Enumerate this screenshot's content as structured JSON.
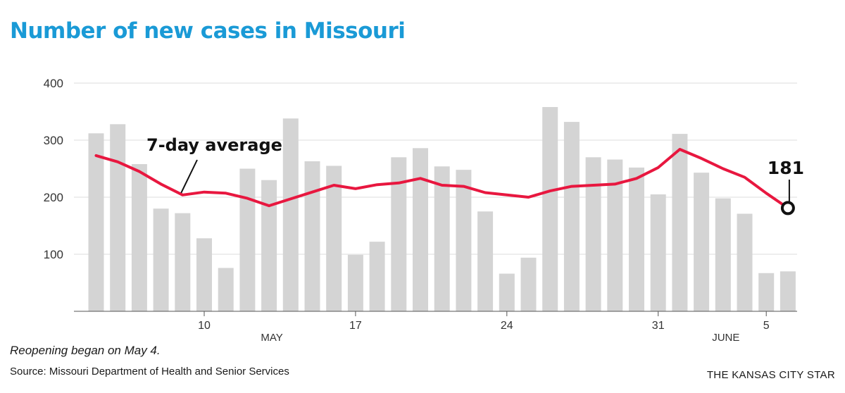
{
  "header": {
    "title": "Number of new cases in Missouri"
  },
  "footer": {
    "note": "Reopening began on May 4.",
    "source": "Source: Missouri Department of Health and Senior Services",
    "credit": "THE KANSAS CITY STAR"
  },
  "colors": {
    "title": "#1a9ad6",
    "bars": "#d4d4d4",
    "line": "#e8173f",
    "grid": "#dddddd"
  },
  "chart_data": {
    "type": "bar",
    "ylim": [
      0,
      400
    ],
    "yticks": [
      100,
      200,
      300,
      400
    ],
    "grid": true,
    "categories": [
      "May 5",
      "May 6",
      "May 7",
      "May 8",
      "May 9",
      "May 10",
      "May 11",
      "May 12",
      "May 13",
      "May 14",
      "May 15",
      "May 16",
      "May 17",
      "May 18",
      "May 19",
      "May 20",
      "May 21",
      "May 22",
      "May 23",
      "May 24",
      "May 25",
      "May 26",
      "May 27",
      "May 28",
      "May 29",
      "May 30",
      "May 31",
      "Jun 1",
      "Jun 2",
      "Jun 3",
      "Jun 4",
      "Jun 5",
      "Jun 6"
    ],
    "x_tick_labels": [
      {
        "category": "May 10",
        "label": "10"
      },
      {
        "category": "May 17",
        "label": "17"
      },
      {
        "category": "May 24",
        "label": "24"
      },
      {
        "category": "May 31",
        "label": "31"
      },
      {
        "category": "Jun 5",
        "label": "5"
      }
    ],
    "month_labels": [
      {
        "category": "May 13",
        "label": "MAY"
      },
      {
        "category": "Jun 3",
        "label": "JUNE"
      }
    ],
    "series": [
      {
        "type": "bar",
        "values": [
          312,
          328,
          258,
          180,
          172,
          128,
          76,
          250,
          230,
          338,
          263,
          255,
          99,
          122,
          270,
          286,
          254,
          248,
          175,
          66,
          94,
          358,
          332,
          270,
          266,
          252,
          205,
          311,
          243,
          198,
          171,
          67,
          70
        ]
      },
      {
        "type": "line",
        "name": "7-day average",
        "values": [
          273,
          262,
          245,
          223,
          204,
          209,
          207,
          198,
          185,
          197,
          209,
          221,
          215,
          222,
          225,
          233,
          221,
          219,
          208,
          204,
          200,
          211,
          219,
          221,
          223,
          233,
          252,
          284,
          268,
          250,
          235,
          207,
          181
        ]
      }
    ],
    "annotations": [
      {
        "text": "7-day average"
      },
      {
        "text": "181"
      }
    ]
  }
}
